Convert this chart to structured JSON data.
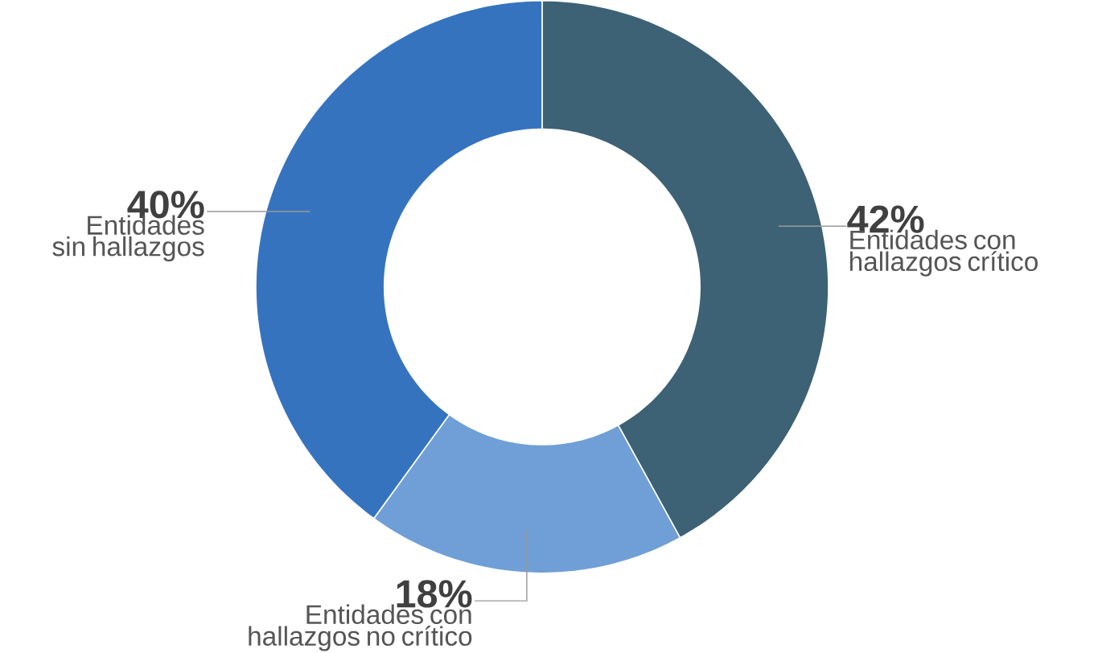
{
  "chart_data": {
    "type": "donut",
    "categories": [
      "Entidades con hallazgos crítico",
      "Entidades con hallazgos no crítico",
      "Entidades sin hallazgos"
    ],
    "values": [
      42,
      18,
      40
    ],
    "value_labels": [
      "42%",
      "18%",
      "40%"
    ],
    "colors": [
      "#3d6175",
      "#6f9fd6",
      "#3673bf"
    ]
  }
}
